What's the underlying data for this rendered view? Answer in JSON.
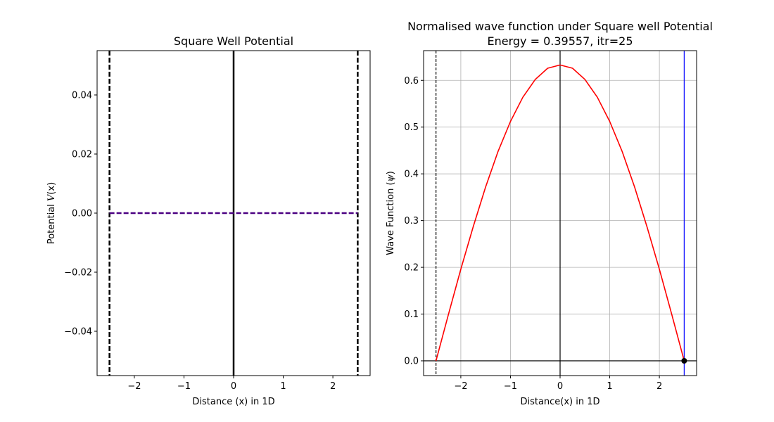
{
  "chart_data": [
    {
      "type": "line",
      "title": "Square Well Potential",
      "xlabel": "Distance (x) in 1D",
      "ylabel_prefix": "Potential ",
      "ylabel_var": "V",
      "ylabel_arg": "(x)",
      "xlim": [
        -2.75,
        2.75
      ],
      "ylim": [
        -0.055,
        0.055
      ],
      "xticks": [
        -2,
        -1,
        0,
        1,
        2
      ],
      "xtick_labels": [
        "−2",
        "−1",
        "0",
        "1",
        "2"
      ],
      "yticks": [
        -0.04,
        -0.02,
        0.0,
        0.02,
        0.04
      ],
      "ytick_labels": [
        "−0.04",
        "−0.02",
        "0.00",
        "0.02",
        "0.04"
      ],
      "grid": false,
      "series": [
        {
          "x": [
            -2.5,
            2.5
          ],
          "y": [
            0,
            0
          ],
          "color": "#4b0082",
          "style": "dashed"
        }
      ],
      "vlines": [
        {
          "x": -2.5,
          "color": "#000000",
          "style": "dashed"
        },
        {
          "x": 0,
          "color": "#000000",
          "style": "solid"
        },
        {
          "x": 2.5,
          "color": "#000000",
          "style": "dashed"
        }
      ]
    },
    {
      "type": "line",
      "title_line1": "Normalised wave function under Square well Potential",
      "title_line2": "Energy =  0.39557, itr=25",
      "xlabel": "Distance(x) in 1D",
      "ylabel_prefix": "Wave Function (",
      "ylabel_var": "ψ",
      "ylabel_suffix": ")",
      "xlim": [
        -2.75,
        2.75
      ],
      "ylim": [
        -0.0316,
        0.6636
      ],
      "xticks": [
        -2,
        -1,
        0,
        1,
        2
      ],
      "xtick_labels": [
        "−2",
        "−1",
        "0",
        "1",
        "2"
      ],
      "yticks": [
        0.0,
        0.1,
        0.2,
        0.3,
        0.4,
        0.5,
        0.6
      ],
      "ytick_labels": [
        "0.0",
        "0.1",
        "0.2",
        "0.3",
        "0.4",
        "0.5",
        "0.6"
      ],
      "grid": true,
      "series": [
        {
          "color": "#ff0000",
          "x": [
            -2.5,
            -2.25,
            -2.0,
            -1.75,
            -1.5,
            -1.25,
            -1.0,
            -0.75,
            -0.5,
            -0.25,
            0.0,
            0.25,
            0.5,
            0.75,
            1.0,
            1.25,
            1.5,
            1.75,
            2.0,
            2.25,
            2.5
          ],
          "y": [
            0.0,
            0.099,
            0.196,
            0.287,
            0.372,
            0.448,
            0.512,
            0.564,
            0.602,
            0.626,
            0.633,
            0.626,
            0.602,
            0.564,
            0.512,
            0.448,
            0.372,
            0.287,
            0.196,
            0.099,
            0.0
          ]
        }
      ],
      "hlines": [
        {
          "y": 0,
          "color": "#000000",
          "style": "solid"
        }
      ],
      "vlines": [
        {
          "x": -2.5,
          "color": "#000000",
          "style": "dashed"
        },
        {
          "x": 0,
          "color": "#000000",
          "style": "solid"
        },
        {
          "x": 2.5,
          "color": "#0000ff",
          "style": "solid"
        }
      ],
      "points": [
        {
          "x": 2.5,
          "y": 0.0,
          "color": "#000000"
        }
      ]
    }
  ]
}
